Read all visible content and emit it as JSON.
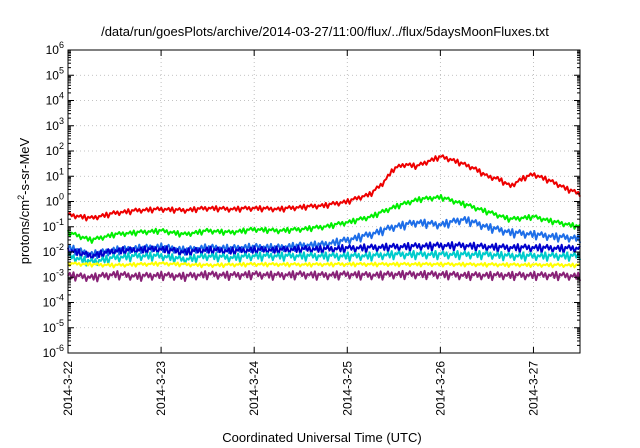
{
  "chart_data": {
    "type": "line",
    "title": "/data/run/goesPlots/archive/2014-03-27/11:00/flux/../flux/5daysMoonFluxes.txt",
    "xlabel": "Coordinated Universal Time (UTC)",
    "ylabel_parts": {
      "pre": "protons/cm",
      "sup": "2",
      "post": "-s-sr-MeV"
    },
    "y_scale": "log",
    "ylim": [
      1e-06,
      1000000.0
    ],
    "y_ticks": [
      {
        "value": 1e-06,
        "base": "10",
        "exp": "-6"
      },
      {
        "value": 1e-05,
        "base": "10",
        "exp": "-5"
      },
      {
        "value": 0.0001,
        "base": "10",
        "exp": "-4"
      },
      {
        "value": 0.001,
        "base": "10",
        "exp": "-3"
      },
      {
        "value": 0.01,
        "base": "10",
        "exp": "-2"
      },
      {
        "value": 0.1,
        "base": "10",
        "exp": "-1"
      },
      {
        "value": 1,
        "base": "10",
        "exp": "0"
      },
      {
        "value": 10,
        "base": "10",
        "exp": "1"
      },
      {
        "value": 100,
        "base": "10",
        "exp": "2"
      },
      {
        "value": 1000,
        "base": "10",
        "exp": "3"
      },
      {
        "value": 10000,
        "base": "10",
        "exp": "4"
      },
      {
        "value": 100000,
        "base": "10",
        "exp": "5"
      },
      {
        "value": 1000000,
        "base": "10",
        "exp": "6"
      }
    ],
    "xlim": [
      "2014-03-22",
      "2014-03-27 12:00"
    ],
    "x_ticks": [
      "2014-3-22",
      "2014-3-23",
      "2014-3-24",
      "2014-3-25",
      "2014-3-26",
      "2014-3-27"
    ],
    "grid": true,
    "series": [
      {
        "color": "#ee0000",
        "points": [
          [
            "2014-03-22 00:00",
            0.3
          ],
          [
            "2014-03-22 06:00",
            0.22
          ],
          [
            "2014-03-22 12:00",
            0.35
          ],
          [
            "2014-03-22 18:00",
            0.45
          ],
          [
            "2014-03-23 00:00",
            0.5
          ],
          [
            "2014-03-23 06:00",
            0.45
          ],
          [
            "2014-03-23 12:00",
            0.55
          ],
          [
            "2014-03-23 18:00",
            0.5
          ],
          [
            "2014-03-24 00:00",
            0.55
          ],
          [
            "2014-03-24 06:00",
            0.5
          ],
          [
            "2014-03-24 12:00",
            0.6
          ],
          [
            "2014-03-24 18:00",
            0.7
          ],
          [
            "2014-03-25 00:00",
            1.0
          ],
          [
            "2014-03-25 06:00",
            2.0
          ],
          [
            "2014-03-25 09:00",
            5
          ],
          [
            "2014-03-25 12:00",
            20
          ],
          [
            "2014-03-25 15:00",
            30
          ],
          [
            "2014-03-25 18:00",
            25
          ],
          [
            "2014-03-25 21:00",
            40
          ],
          [
            "2014-03-26 00:00",
            60
          ],
          [
            "2014-03-26 03:00",
            45
          ],
          [
            "2014-03-26 06:00",
            30
          ],
          [
            "2014-03-26 09:00",
            20
          ],
          [
            "2014-03-26 12:00",
            10
          ],
          [
            "2014-03-26 15:00",
            8
          ],
          [
            "2014-03-26 18:00",
            4
          ],
          [
            "2014-03-26 21:00",
            8
          ],
          [
            "2014-03-27 00:00",
            12
          ],
          [
            "2014-03-27 03:00",
            8
          ],
          [
            "2014-03-27 06:00",
            5
          ],
          [
            "2014-03-27 09:00",
            3
          ],
          [
            "2014-03-27 12:00",
            2
          ]
        ]
      },
      {
        "color": "#00ee00",
        "points": [
          [
            "2014-03-22 00:00",
            0.06
          ],
          [
            "2014-03-22 06:00",
            0.03
          ],
          [
            "2014-03-22 12:00",
            0.05
          ],
          [
            "2014-03-22 18:00",
            0.06
          ],
          [
            "2014-03-23 00:00",
            0.07
          ],
          [
            "2014-03-23 06:00",
            0.05
          ],
          [
            "2014-03-23 12:00",
            0.07
          ],
          [
            "2014-03-23 18:00",
            0.06
          ],
          [
            "2014-03-24 00:00",
            0.08
          ],
          [
            "2014-03-24 06:00",
            0.07
          ],
          [
            "2014-03-24 12:00",
            0.08
          ],
          [
            "2014-03-24 18:00",
            0.1
          ],
          [
            "2014-03-25 00:00",
            0.15
          ],
          [
            "2014-03-25 06:00",
            0.25
          ],
          [
            "2014-03-25 12:00",
            0.6
          ],
          [
            "2014-03-25 18:00",
            1.2
          ],
          [
            "2014-03-26 00:00",
            1.5
          ],
          [
            "2014-03-26 06:00",
            0.8
          ],
          [
            "2014-03-26 12:00",
            0.4
          ],
          [
            "2014-03-26 18:00",
            0.2
          ],
          [
            "2014-03-27 00:00",
            0.25
          ],
          [
            "2014-03-27 06:00",
            0.15
          ],
          [
            "2014-03-27 12:00",
            0.1
          ]
        ]
      },
      {
        "color": "#1e6ee8",
        "points": [
          [
            "2014-03-22 00:00",
            0.015
          ],
          [
            "2014-03-22 06:00",
            0.008
          ],
          [
            "2014-03-22 12:00",
            0.012
          ],
          [
            "2014-03-22 18:00",
            0.014
          ],
          [
            "2014-03-23 00:00",
            0.016
          ],
          [
            "2014-03-23 06:00",
            0.012
          ],
          [
            "2014-03-23 12:00",
            0.015
          ],
          [
            "2014-03-23 18:00",
            0.014
          ],
          [
            "2014-03-24 00:00",
            0.016
          ],
          [
            "2014-03-24 06:00",
            0.015
          ],
          [
            "2014-03-24 12:00",
            0.018
          ],
          [
            "2014-03-24 18:00",
            0.02
          ],
          [
            "2014-03-25 00:00",
            0.03
          ],
          [
            "2014-03-25 06:00",
            0.05
          ],
          [
            "2014-03-25 12:00",
            0.1
          ],
          [
            "2014-03-25 18:00",
            0.15
          ],
          [
            "2014-03-26 00:00",
            0.12
          ],
          [
            "2014-03-26 06:00",
            0.2
          ],
          [
            "2014-03-26 12:00",
            0.1
          ],
          [
            "2014-03-26 18:00",
            0.06
          ],
          [
            "2014-03-27 00:00",
            0.05
          ],
          [
            "2014-03-27 06:00",
            0.04
          ],
          [
            "2014-03-27 12:00",
            0.035
          ]
        ]
      },
      {
        "color": "#0000cc",
        "points": [
          [
            "2014-03-22 00:00",
            0.012
          ],
          [
            "2014-03-22 06:00",
            0.007
          ],
          [
            "2014-03-22 12:00",
            0.011
          ],
          [
            "2014-03-22 18:00",
            0.012
          ],
          [
            "2014-03-23 00:00",
            0.013
          ],
          [
            "2014-03-23 06:00",
            0.01
          ],
          [
            "2014-03-23 12:00",
            0.012
          ],
          [
            "2014-03-23 18:00",
            0.011
          ],
          [
            "2014-03-24 00:00",
            0.012
          ],
          [
            "2014-03-24 06:00",
            0.012
          ],
          [
            "2014-03-24 12:00",
            0.013
          ],
          [
            "2014-03-24 18:00",
            0.013
          ],
          [
            "2014-03-25 00:00",
            0.014
          ],
          [
            "2014-03-25 06:00",
            0.015
          ],
          [
            "2014-03-25 12:00",
            0.016
          ],
          [
            "2014-03-25 18:00",
            0.017
          ],
          [
            "2014-03-26 00:00",
            0.018
          ],
          [
            "2014-03-26 06:00",
            0.018
          ],
          [
            "2014-03-26 12:00",
            0.016
          ],
          [
            "2014-03-26 18:00",
            0.015
          ],
          [
            "2014-03-27 00:00",
            0.015
          ],
          [
            "2014-03-27 06:00",
            0.014
          ],
          [
            "2014-03-27 12:00",
            0.014
          ]
        ]
      },
      {
        "color": "#00cccc",
        "points": [
          [
            "2014-03-22 00:00",
            0.007
          ],
          [
            "2014-03-22 06:00",
            0.004
          ],
          [
            "2014-03-22 12:00",
            0.006
          ],
          [
            "2014-03-22 18:00",
            0.007
          ],
          [
            "2014-03-23 00:00",
            0.007
          ],
          [
            "2014-03-23 06:00",
            0.005
          ],
          [
            "2014-03-23 12:00",
            0.007
          ],
          [
            "2014-03-23 18:00",
            0.006
          ],
          [
            "2014-03-24 00:00",
            0.007
          ],
          [
            "2014-03-24 06:00",
            0.007
          ],
          [
            "2014-03-24 12:00",
            0.007
          ],
          [
            "2014-03-24 18:00",
            0.007
          ],
          [
            "2014-03-25 00:00",
            0.007
          ],
          [
            "2014-03-25 06:00",
            0.007
          ],
          [
            "2014-03-25 12:00",
            0.008
          ],
          [
            "2014-03-25 18:00",
            0.008
          ],
          [
            "2014-03-26 00:00",
            0.008
          ],
          [
            "2014-03-26 06:00",
            0.008
          ],
          [
            "2014-03-26 12:00",
            0.008
          ],
          [
            "2014-03-26 18:00",
            0.007
          ],
          [
            "2014-03-27 00:00",
            0.007
          ],
          [
            "2014-03-27 06:00",
            0.007
          ],
          [
            "2014-03-27 12:00",
            0.007
          ]
        ]
      },
      {
        "color": "#ffff00",
        "points": [
          [
            "2014-03-22 00:00",
            0.0035
          ],
          [
            "2014-03-22 12:00",
            0.003
          ],
          [
            "2014-03-23 00:00",
            0.0035
          ],
          [
            "2014-03-23 12:00",
            0.003
          ],
          [
            "2014-03-24 00:00",
            0.0033
          ],
          [
            "2014-03-24 12:00",
            0.0032
          ],
          [
            "2014-03-25 00:00",
            0.0033
          ],
          [
            "2014-03-25 12:00",
            0.0033
          ],
          [
            "2014-03-26 00:00",
            0.0033
          ],
          [
            "2014-03-26 12:00",
            0.0032
          ],
          [
            "2014-03-27 00:00",
            0.0031
          ],
          [
            "2014-03-27 12:00",
            0.003
          ]
        ]
      },
      {
        "color": "#882277",
        "points": [
          [
            "2014-03-22 00:00",
            0.0012
          ],
          [
            "2014-03-22 06:00",
            0.001
          ],
          [
            "2014-03-22 12:00",
            0.0013
          ],
          [
            "2014-03-22 18:00",
            0.0011
          ],
          [
            "2014-03-23 00:00",
            0.0012
          ],
          [
            "2014-03-23 06:00",
            0.0011
          ],
          [
            "2014-03-23 12:00",
            0.0013
          ],
          [
            "2014-03-23 18:00",
            0.0012
          ],
          [
            "2014-03-24 00:00",
            0.0013
          ],
          [
            "2014-03-24 06:00",
            0.0012
          ],
          [
            "2014-03-24 12:00",
            0.0013
          ],
          [
            "2014-03-24 18:00",
            0.0012
          ],
          [
            "2014-03-25 00:00",
            0.0013
          ],
          [
            "2014-03-25 06:00",
            0.0012
          ],
          [
            "2014-03-25 12:00",
            0.0013
          ],
          [
            "2014-03-25 18:00",
            0.0013
          ],
          [
            "2014-03-26 00:00",
            0.0013
          ],
          [
            "2014-03-26 06:00",
            0.0012
          ],
          [
            "2014-03-26 12:00",
            0.0012
          ],
          [
            "2014-03-26 18:00",
            0.0012
          ],
          [
            "2014-03-27 00:00",
            0.0012
          ],
          [
            "2014-03-27 06:00",
            0.0012
          ],
          [
            "2014-03-27 12:00",
            0.0011
          ]
        ]
      }
    ]
  }
}
